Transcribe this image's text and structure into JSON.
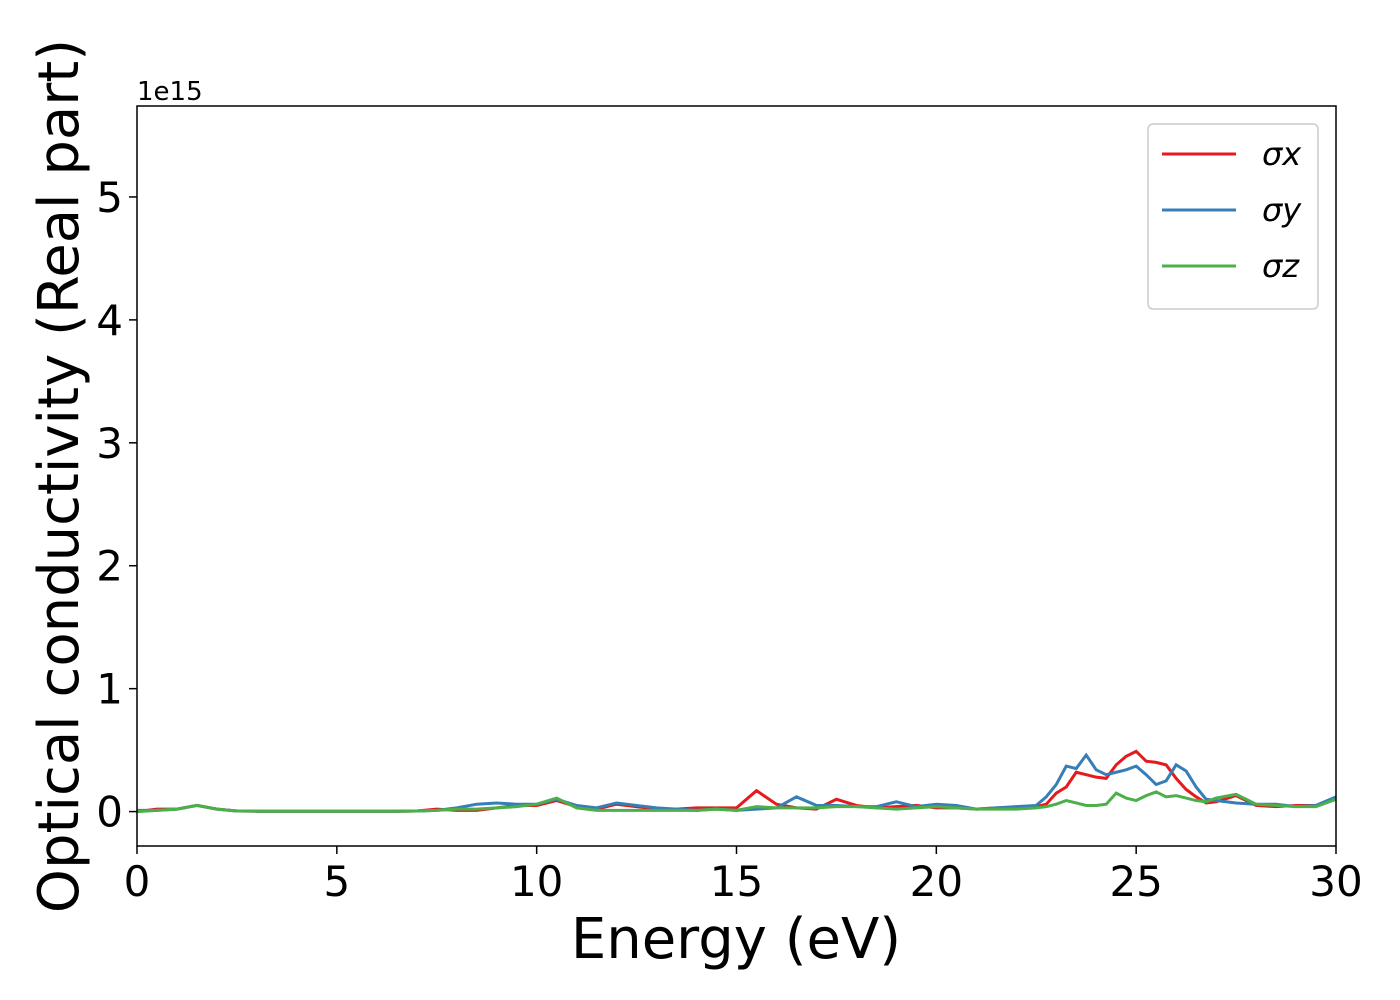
{
  "chart_data": {
    "type": "line",
    "xlabel": "Energy (eV)",
    "ylabel": "Optical conductivity (Real part)",
    "y_offset_label": "1e15",
    "x": [
      0,
      0.5,
      1,
      1.5,
      2,
      2.5,
      3,
      3.5,
      4,
      4.5,
      5,
      5.5,
      6,
      6.5,
      7,
      7.5,
      8,
      8.5,
      9,
      9.5,
      10,
      10.5,
      11,
      11.5,
      12,
      12.5,
      13,
      13.5,
      14,
      14.5,
      15,
      15.5,
      16,
      16.5,
      17,
      17.5,
      18,
      18.5,
      19,
      19.5,
      20,
      20.5,
      21,
      21.5,
      22,
      22.5,
      22.75,
      23,
      23.25,
      23.5,
      23.75,
      24,
      24.25,
      24.5,
      24.75,
      25,
      25.25,
      25.5,
      25.75,
      26,
      26.25,
      26.5,
      26.75,
      27,
      27.5,
      28,
      28.5,
      29,
      29.5,
      30
    ],
    "series": [
      {
        "name": "σx",
        "color": "#e41a1c",
        "values": [
          0,
          0.02,
          0.02,
          0.05,
          0.02,
          0.005,
          0.003,
          0.003,
          0.003,
          0.003,
          0.003,
          0.003,
          0.003,
          0.003,
          0.005,
          0.02,
          0.01,
          0.01,
          0.03,
          0.05,
          0.05,
          0.09,
          0.04,
          0.02,
          0.06,
          0.04,
          0.02,
          0.02,
          0.03,
          0.03,
          0.03,
          0.17,
          0.06,
          0.03,
          0.02,
          0.1,
          0.05,
          0.03,
          0.04,
          0.05,
          0.03,
          0.03,
          0.02,
          0.03,
          0.03,
          0.04,
          0.06,
          0.15,
          0.2,
          0.32,
          0.3,
          0.28,
          0.27,
          0.38,
          0.45,
          0.49,
          0.41,
          0.4,
          0.38,
          0.27,
          0.18,
          0.12,
          0.07,
          0.08,
          0.13,
          0.05,
          0.04,
          0.05,
          0.05,
          0.1
        ]
      },
      {
        "name": "σy",
        "color": "#377eb8",
        "values": [
          0.01,
          0.01,
          0.02,
          0.05,
          0.02,
          0.005,
          0.003,
          0.003,
          0.003,
          0.003,
          0.003,
          0.003,
          0.003,
          0.003,
          0.005,
          0.01,
          0.03,
          0.06,
          0.07,
          0.06,
          0.06,
          0.1,
          0.05,
          0.03,
          0.07,
          0.05,
          0.03,
          0.02,
          0.01,
          0.02,
          0.01,
          0.02,
          0.03,
          0.12,
          0.05,
          0.05,
          0.04,
          0.04,
          0.08,
          0.04,
          0.06,
          0.05,
          0.02,
          0.03,
          0.04,
          0.05,
          0.12,
          0.22,
          0.37,
          0.35,
          0.46,
          0.34,
          0.3,
          0.32,
          0.34,
          0.37,
          0.3,
          0.22,
          0.25,
          0.38,
          0.33,
          0.2,
          0.1,
          0.09,
          0.07,
          0.06,
          0.06,
          0.04,
          0.05,
          0.12
        ]
      },
      {
        "name": "σz",
        "color": "#4daf4a",
        "values": [
          0,
          0.01,
          0.02,
          0.05,
          0.02,
          0.005,
          0.003,
          0.003,
          0.003,
          0.003,
          0.003,
          0.003,
          0.003,
          0.003,
          0.005,
          0.01,
          0.02,
          0.02,
          0.03,
          0.04,
          0.06,
          0.11,
          0.03,
          0.01,
          0.01,
          0.01,
          0.01,
          0.01,
          0.01,
          0.02,
          0.01,
          0.04,
          0.03,
          0.03,
          0.03,
          0.04,
          0.04,
          0.03,
          0.02,
          0.03,
          0.04,
          0.03,
          0.02,
          0.02,
          0.02,
          0.03,
          0.04,
          0.06,
          0.09,
          0.07,
          0.05,
          0.05,
          0.06,
          0.15,
          0.11,
          0.09,
          0.13,
          0.16,
          0.12,
          0.13,
          0.11,
          0.09,
          0.08,
          0.11,
          0.14,
          0.06,
          0.05,
          0.04,
          0.04,
          0.1
        ]
      }
    ],
    "xlim": [
      0,
      30
    ],
    "xticks": [
      0,
      5,
      10,
      15,
      20,
      25,
      30
    ],
    "ylim": [
      -0.28,
      5.74
    ],
    "yticks": [
      0,
      1,
      2,
      3,
      4,
      5
    ],
    "legend": "upper right",
    "grid": false
  }
}
